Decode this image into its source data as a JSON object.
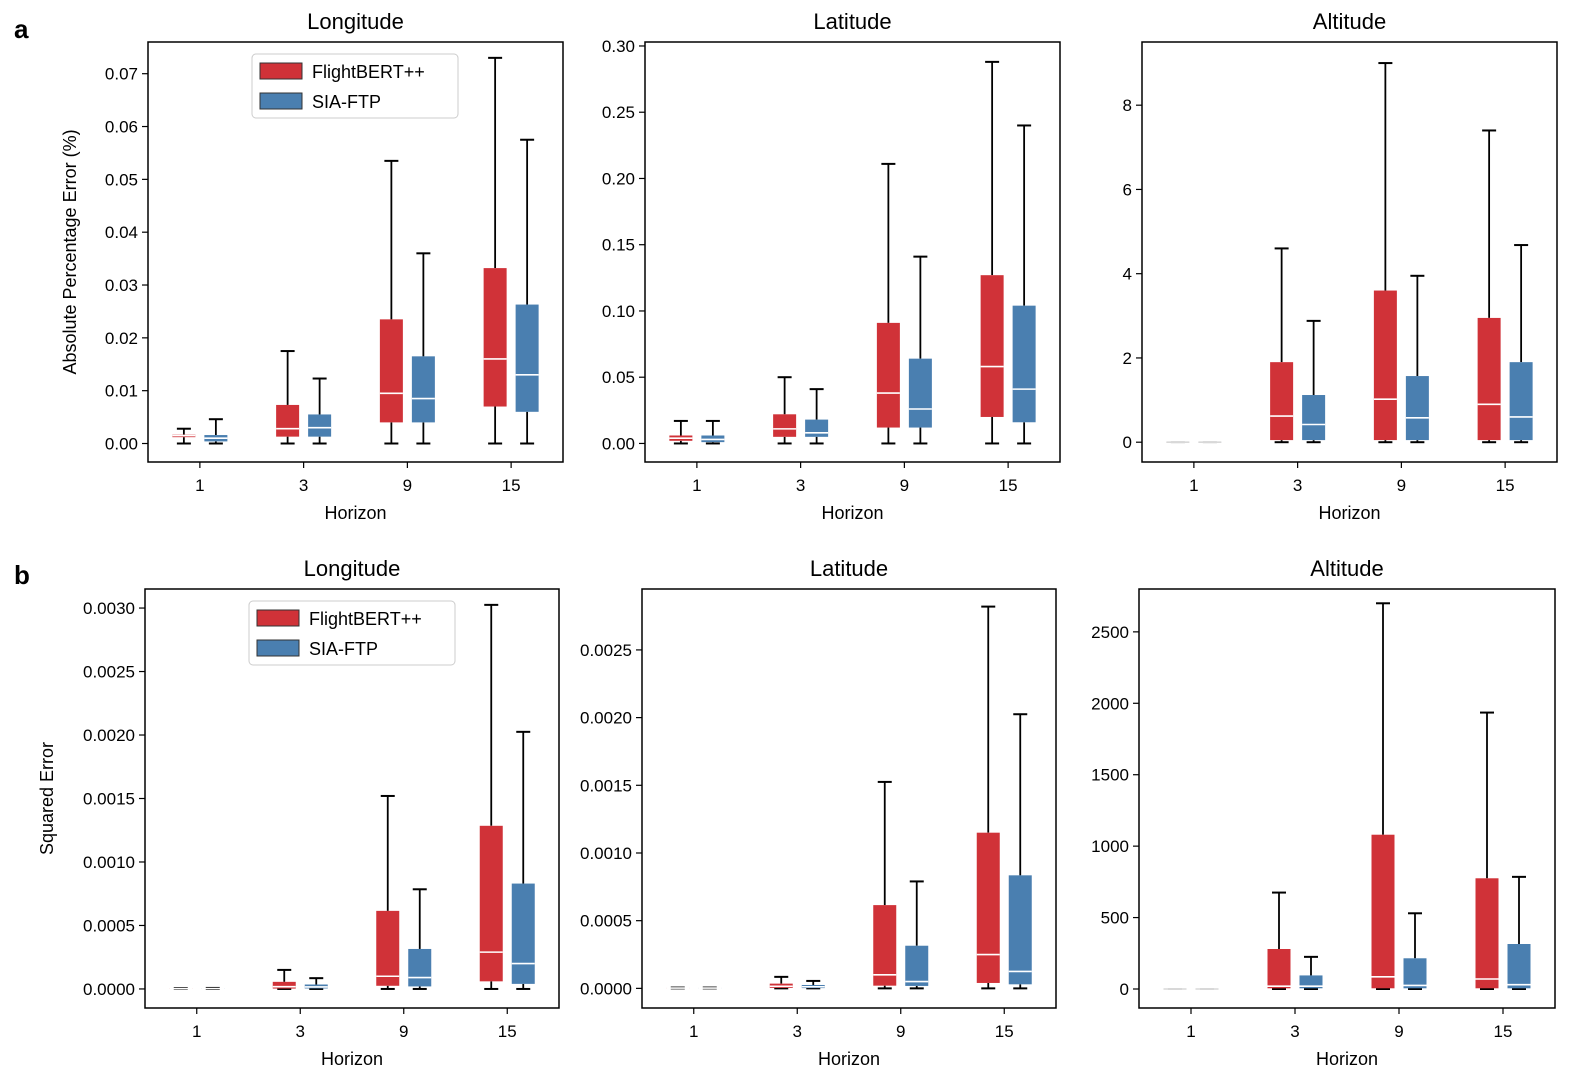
{
  "figure": {
    "panel_labels": [
      "a",
      "b"
    ],
    "colors": {
      "FlightBERT++": "#d03238",
      "SIA-FTP": "#4a7fb0",
      "median": "#ffffff",
      "axis": "#000000"
    }
  },
  "chart_data": [
    {
      "type": "box",
      "panel": "a",
      "title": "Longitude",
      "xlabel": "Horizon",
      "ylabel": "Absolute Percentage Error (%)",
      "ylim": [
        -0.0035,
        0.076
      ],
      "yticks": [
        "0.00",
        "0.01",
        "0.02",
        "0.03",
        "0.04",
        "0.05",
        "0.06",
        "0.07"
      ],
      "categories": [
        "1",
        "3",
        "9",
        "15"
      ],
      "legend": true,
      "series": [
        {
          "name": "FlightBERT++",
          "boxes": [
            {
              "whislo": 0.0,
              "q1": 0.0012,
              "med": 0.0015,
              "q3": 0.0017,
              "whishi": 0.0028
            },
            {
              "whislo": 0.0,
              "q1": 0.0013,
              "med": 0.0028,
              "q3": 0.0073,
              "whishi": 0.0175
            },
            {
              "whislo": 0.0,
              "q1": 0.004,
              "med": 0.0095,
              "q3": 0.0235,
              "whishi": 0.0535
            },
            {
              "whislo": 0.0,
              "q1": 0.007,
              "med": 0.016,
              "q3": 0.0332,
              "whishi": 0.073
            }
          ]
        },
        {
          "name": "SIA-FTP",
          "boxes": [
            {
              "whislo": 0.0,
              "q1": 0.0004,
              "med": 0.001,
              "q3": 0.0016,
              "whishi": 0.0046
            },
            {
              "whislo": 0.0,
              "q1": 0.0013,
              "med": 0.003,
              "q3": 0.0055,
              "whishi": 0.0123
            },
            {
              "whislo": 0.0,
              "q1": 0.004,
              "med": 0.0085,
              "q3": 0.0165,
              "whishi": 0.036
            },
            {
              "whislo": 0.0,
              "q1": 0.006,
              "med": 0.013,
              "q3": 0.0263,
              "whishi": 0.0575
            }
          ]
        }
      ]
    },
    {
      "type": "box",
      "panel": "a",
      "title": "Latitude",
      "xlabel": "Horizon",
      "ylabel": "",
      "ylim": [
        -0.014,
        0.303
      ],
      "yticks": [
        "0.00",
        "0.05",
        "0.10",
        "0.15",
        "0.20",
        "0.25",
        "0.30"
      ],
      "categories": [
        "1",
        "3",
        "9",
        "15"
      ],
      "legend": false,
      "series": [
        {
          "name": "FlightBERT++",
          "boxes": [
            {
              "whislo": 0.0,
              "q1": 0.002,
              "med": 0.004,
              "q3": 0.006,
              "whishi": 0.017
            },
            {
              "whislo": 0.0,
              "q1": 0.005,
              "med": 0.011,
              "q3": 0.022,
              "whishi": 0.05
            },
            {
              "whislo": 0.0,
              "q1": 0.012,
              "med": 0.038,
              "q3": 0.091,
              "whishi": 0.211
            },
            {
              "whislo": 0.0,
              "q1": 0.02,
              "med": 0.058,
              "q3": 0.127,
              "whishi": 0.288
            }
          ]
        },
        {
          "name": "SIA-FTP",
          "boxes": [
            {
              "whislo": 0.0,
              "q1": 0.001,
              "med": 0.003,
              "q3": 0.006,
              "whishi": 0.017
            },
            {
              "whislo": 0.0,
              "q1": 0.005,
              "med": 0.008,
              "q3": 0.018,
              "whishi": 0.041
            },
            {
              "whislo": 0.0,
              "q1": 0.012,
              "med": 0.026,
              "q3": 0.064,
              "whishi": 0.141
            },
            {
              "whislo": 0.0,
              "q1": 0.016,
              "med": 0.041,
              "q3": 0.104,
              "whishi": 0.24
            }
          ]
        }
      ]
    },
    {
      "type": "box",
      "panel": "a",
      "title": "Altitude",
      "xlabel": "Horizon",
      "ylabel": "",
      "ylim": [
        -0.47,
        9.5
      ],
      "yticks": [
        "0",
        "2",
        "4",
        "6",
        "8"
      ],
      "categories": [
        "1",
        "3",
        "9",
        "15"
      ],
      "legend": false,
      "series": [
        {
          "name": "FlightBERT++",
          "boxes": [
            {
              "whislo": 0.0,
              "q1": 0.0,
              "med": 0.0,
              "q3": 0.0,
              "whishi": 0.0
            },
            {
              "whislo": 0.0,
              "q1": 0.05,
              "med": 0.62,
              "q3": 1.9,
              "whishi": 4.6
            },
            {
              "whislo": 0.0,
              "q1": 0.05,
              "med": 1.02,
              "q3": 3.6,
              "whishi": 9.0
            },
            {
              "whislo": 0.0,
              "q1": 0.05,
              "med": 0.9,
              "q3": 2.95,
              "whishi": 7.4
            }
          ]
        },
        {
          "name": "SIA-FTP",
          "boxes": [
            {
              "whislo": 0.0,
              "q1": 0.0,
              "med": 0.0,
              "q3": 0.0,
              "whishi": 0.0
            },
            {
              "whislo": 0.0,
              "q1": 0.05,
              "med": 0.42,
              "q3": 1.12,
              "whishi": 2.88
            },
            {
              "whislo": 0.0,
              "q1": 0.05,
              "med": 0.58,
              "q3": 1.57,
              "whishi": 3.95
            },
            {
              "whislo": 0.0,
              "q1": 0.05,
              "med": 0.6,
              "q3": 1.9,
              "whishi": 4.68
            }
          ]
        }
      ]
    },
    {
      "type": "box",
      "panel": "b",
      "title": "Longitude",
      "xlabel": "Horizon",
      "ylabel": "Squared Error",
      "ylim": [
        -0.00015,
        0.00315
      ],
      "yticks": [
        "0.0000",
        "0.0005",
        "0.0010",
        "0.0015",
        "0.0020",
        "0.0025",
        "0.0030"
      ],
      "categories": [
        "1",
        "3",
        "9",
        "15"
      ],
      "legend": true,
      "series": [
        {
          "name": "FlightBERT++",
          "boxes": [
            {
              "whislo": 0.0,
              "q1": 0.0,
              "med": 2e-06,
              "q3": 4e-06,
              "whishi": 6e-06
            },
            {
              "whislo": 0.0,
              "q1": 3e-06,
              "med": 1.8e-05,
              "q3": 5.6e-05,
              "whishi": 0.00015
            },
            {
              "whislo": 0.0,
              "q1": 2.5e-05,
              "med": 0.0001,
              "q3": 0.000615,
              "whishi": 0.00152
            },
            {
              "whislo": 0.0,
              "q1": 6e-05,
              "med": 0.00029,
              "q3": 0.001285,
              "whishi": 0.003025
            }
          ]
        },
        {
          "name": "SIA-FTP",
          "boxes": [
            {
              "whislo": 0.0,
              "q1": 0.0,
              "med": 3e-06,
              "q3": 5e-06,
              "whishi": 8e-06
            },
            {
              "whislo": 0.0,
              "q1": 4e-06,
              "med": 1.6e-05,
              "q3": 3.5e-05,
              "whishi": 8.5e-05
            },
            {
              "whislo": 0.0,
              "q1": 2e-05,
              "med": 9e-05,
              "q3": 0.000315,
              "whishi": 0.000785
            },
            {
              "whislo": 0.0,
              "q1": 4e-05,
              "med": 0.0002,
              "q3": 0.00083,
              "whishi": 0.002025
            }
          ]
        }
      ]
    },
    {
      "type": "box",
      "panel": "b",
      "title": "Latitude",
      "xlabel": "Horizon",
      "ylabel": "",
      "ylim": [
        -0.000145,
        0.00295
      ],
      "yticks": [
        "0.0000",
        "0.0005",
        "0.0010",
        "0.0015",
        "0.0020",
        "0.0025"
      ],
      "categories": [
        "1",
        "3",
        "9",
        "15"
      ],
      "legend": false,
      "series": [
        {
          "name": "FlightBERT++",
          "boxes": [
            {
              "whislo": 0.0,
              "q1": 0.0,
              "med": 2e-06,
              "q3": 4e-06,
              "whishi": 6e-06
            },
            {
              "whislo": 0.0,
              "q1": 3e-06,
              "med": 1.5e-05,
              "q3": 3.5e-05,
              "whishi": 8.5e-05
            },
            {
              "whislo": 0.0,
              "q1": 2e-05,
              "med": 0.0001,
              "q3": 0.000615,
              "whishi": 0.001525
            },
            {
              "whislo": 0.0,
              "q1": 4e-05,
              "med": 0.00025,
              "q3": 0.00115,
              "whishi": 0.00282
            }
          ]
        },
        {
          "name": "SIA-FTP",
          "boxes": [
            {
              "whislo": 0.0,
              "q1": 0.0,
              "med": 2e-06,
              "q3": 4e-06,
              "whishi": 6e-06
            },
            {
              "whislo": 0.0,
              "q1": 2e-06,
              "med": 1.2e-05,
              "q3": 2.5e-05,
              "whishi": 5.5e-05
            },
            {
              "whislo": 0.0,
              "q1": 1.8e-05,
              "med": 5e-05,
              "q3": 0.000315,
              "whishi": 0.00079
            },
            {
              "whislo": 0.0,
              "q1": 3e-05,
              "med": 0.000125,
              "q3": 0.000835,
              "whishi": 0.002025
            }
          ]
        }
      ]
    },
    {
      "type": "box",
      "panel": "b",
      "title": "Altitude",
      "xlabel": "Horizon",
      "ylabel": "",
      "ylim": [
        -133,
        2800
      ],
      "yticks": [
        "0",
        "500",
        "1000",
        "1500",
        "2000",
        "2500"
      ],
      "categories": [
        "1",
        "3",
        "9",
        "15"
      ],
      "legend": false,
      "series": [
        {
          "name": "FlightBERT++",
          "boxes": [
            {
              "whislo": 0,
              "q1": 0,
              "med": 0,
              "q3": 0,
              "whishi": 0
            },
            {
              "whislo": 0,
              "q1": 5,
              "med": 20,
              "q3": 280,
              "whishi": 675
            },
            {
              "whislo": 0,
              "q1": 5,
              "med": 85,
              "q3": 1080,
              "whishi": 2700
            },
            {
              "whislo": 0,
              "q1": 5,
              "med": 70,
              "q3": 775,
              "whishi": 1935
            }
          ]
        },
        {
          "name": "SIA-FTP",
          "boxes": [
            {
              "whislo": 0,
              "q1": 0,
              "med": 0,
              "q3": 0,
              "whishi": 0
            },
            {
              "whislo": 0,
              "q1": 5,
              "med": 20,
              "q3": 95,
              "whishi": 225
            },
            {
              "whislo": 0,
              "q1": 5,
              "med": 25,
              "q3": 215,
              "whishi": 530
            },
            {
              "whislo": 0,
              "q1": 5,
              "med": 30,
              "q3": 315,
              "whishi": 785
            }
          ]
        }
      ]
    }
  ]
}
